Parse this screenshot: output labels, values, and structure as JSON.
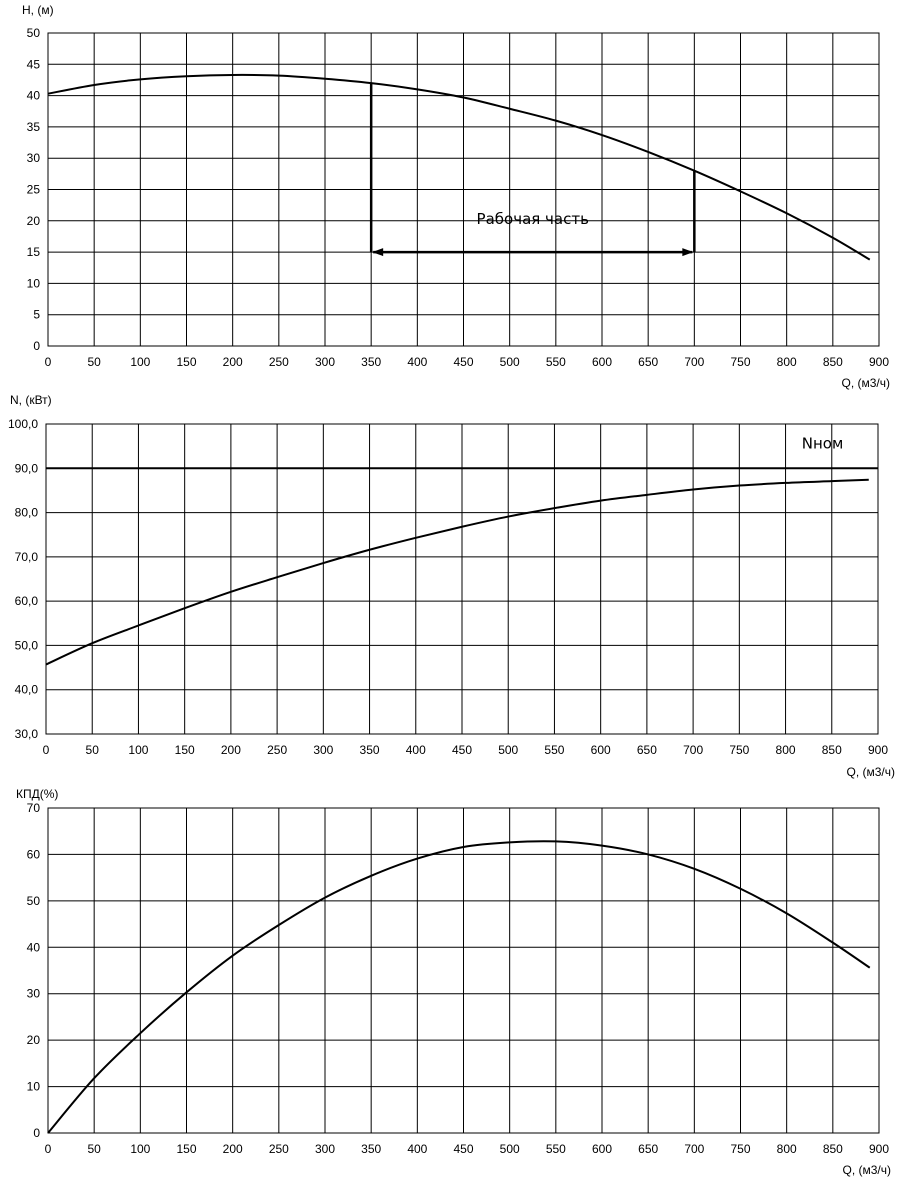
{
  "chart_data": [
    {
      "type": "line",
      "title": "",
      "ylabel": "H, (м)",
      "xlabel": "Q, (м3/ч)",
      "xlim": [
        0,
        900
      ],
      "ylim": [
        0,
        50
      ],
      "xticks": [
        "0",
        "50",
        "100",
        "150",
        "200",
        "250",
        "300",
        "350",
        "400",
        "450",
        "500",
        "550",
        "600",
        "650",
        "700",
        "750",
        "800",
        "850",
        "900"
      ],
      "yticks": [
        "0",
        "5",
        "10",
        "15",
        "20",
        "25",
        "30",
        "35",
        "40",
        "45",
        "50"
      ],
      "grid": true,
      "series": [
        {
          "name": "H",
          "x": [
            0,
            50,
            100,
            150,
            200,
            250,
            300,
            350,
            400,
            450,
            500,
            550,
            600,
            650,
            700,
            750,
            800,
            850,
            890
          ],
          "y": [
            40.3,
            41.7,
            42.6,
            43.1,
            43.3,
            43.2,
            42.7,
            42.0,
            41.0,
            39.7,
            37.9,
            36.0,
            33.7,
            31.0,
            28.0,
            24.7,
            21.2,
            17.3,
            13.8
          ]
        }
      ],
      "annotations": [
        {
          "text": "Рабочая часть",
          "x": 525,
          "y": 19.5
        },
        {
          "type": "vline",
          "x": 350,
          "y_from": 15,
          "y_to": 42.0
        },
        {
          "type": "vline",
          "x": 700,
          "y_from": 15,
          "y_to": 28.0
        },
        {
          "type": "double-arrow",
          "x_from": 350,
          "x_to": 700,
          "y": 15
        }
      ]
    },
    {
      "type": "line",
      "title": "",
      "ylabel": "N, (кВт)",
      "xlabel": "Q, (м3/ч)",
      "xlim": [
        0,
        900
      ],
      "ylim": [
        30,
        100
      ],
      "xticks": [
        "0",
        "50",
        "100",
        "150",
        "200",
        "250",
        "300",
        "350",
        "400",
        "450",
        "500",
        "550",
        "600",
        "650",
        "700",
        "750",
        "800",
        "850",
        "900"
      ],
      "yticks": [
        "30,0",
        "40,0",
        "50,0",
        "60,0",
        "70,0",
        "80,0",
        "90,0",
        "100,0"
      ],
      "grid": true,
      "series": [
        {
          "name": "N",
          "x": [
            0,
            50,
            100,
            150,
            200,
            250,
            300,
            350,
            400,
            450,
            500,
            550,
            600,
            650,
            700,
            750,
            800,
            850,
            890
          ],
          "y": [
            45.7,
            50.5,
            54.5,
            58.4,
            62.1,
            65.4,
            68.6,
            71.6,
            74.3,
            76.8,
            79.1,
            81.0,
            82.7,
            84.0,
            85.2,
            86.1,
            86.7,
            87.1,
            87.4
          ]
        },
        {
          "name": "Nном",
          "x": [
            0,
            900
          ],
          "y": [
            90,
            90
          ]
        }
      ],
      "annotations": [
        {
          "text": "Nном",
          "x": 840,
          "y": 94.5
        }
      ]
    },
    {
      "type": "line",
      "title": "",
      "ylabel": "КПД(%)",
      "xlabel": "Q, (м3/ч)",
      "xlim": [
        0,
        900
      ],
      "ylim": [
        0,
        70
      ],
      "xticks": [
        "0",
        "50",
        "100",
        "150",
        "200",
        "250",
        "300",
        "350",
        "400",
        "450",
        "500",
        "550",
        "600",
        "650",
        "700",
        "750",
        "800",
        "850",
        "900"
      ],
      "yticks": [
        "0",
        "10",
        "20",
        "30",
        "40",
        "50",
        "60",
        "70"
      ],
      "grid": true,
      "series": [
        {
          "name": "КПД",
          "x": [
            0,
            50,
            100,
            150,
            200,
            250,
            300,
            350,
            400,
            450,
            500,
            550,
            600,
            650,
            700,
            750,
            800,
            850,
            890
          ],
          "y": [
            0,
            11.8,
            21.5,
            30.3,
            38.2,
            44.8,
            50.7,
            55.4,
            59.1,
            61.6,
            62.6,
            62.8,
            61.9,
            60.0,
            56.9,
            52.6,
            47.3,
            41.0,
            35.6
          ]
        }
      ]
    }
  ]
}
